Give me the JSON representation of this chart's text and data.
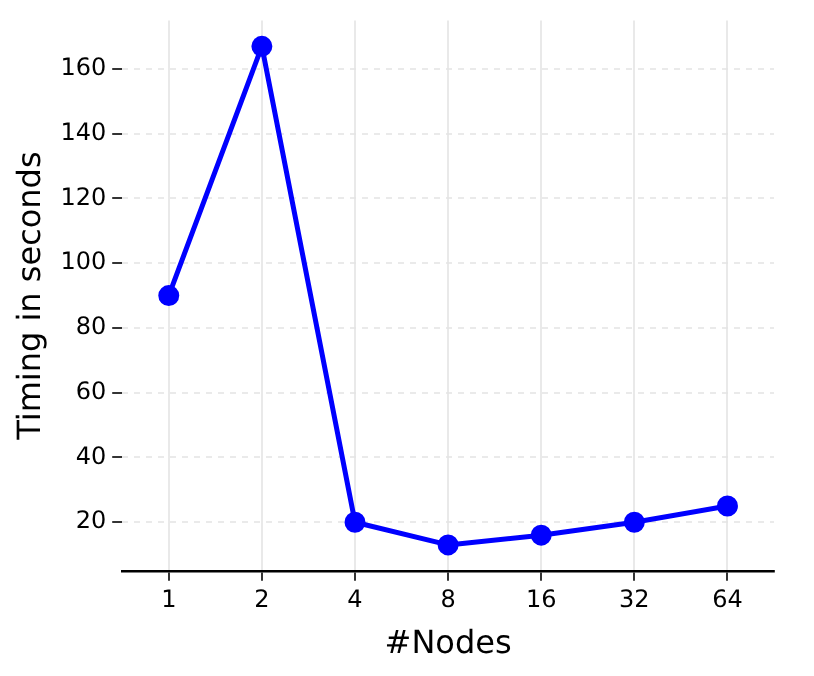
{
  "chart_data": {
    "type": "line",
    "xlabel": "#Nodes",
    "ylabel": "Timing in seconds",
    "categories": [
      "1",
      "2",
      "4",
      "8",
      "16",
      "32",
      "64"
    ],
    "series": [
      {
        "color": "#0000ff",
        "values": [
          90,
          167,
          20,
          13,
          16,
          20,
          25
        ]
      }
    ],
    "ylim": [
      5,
      175
    ],
    "yticks": [
      20,
      40,
      60,
      80,
      100,
      120,
      140,
      160
    ],
    "grid": true,
    "marker": "circle",
    "line_style": "solid",
    "legend": false
  }
}
